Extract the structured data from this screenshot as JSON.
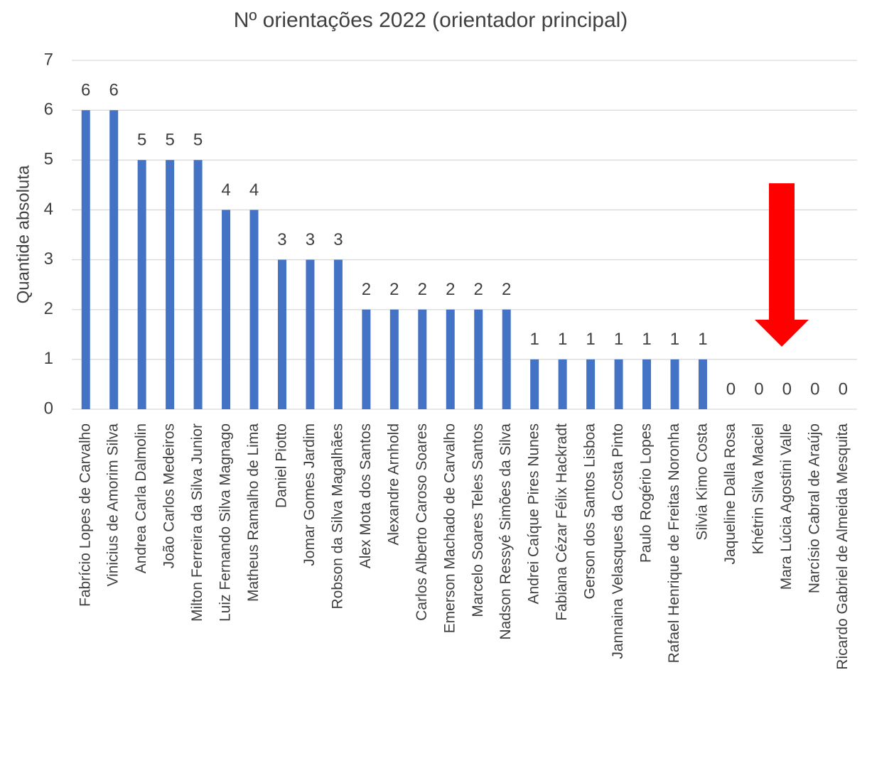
{
  "chart_data": {
    "type": "bar",
    "title": "Nº orientações 2022 (orientador principal)",
    "y_label": "Quantide absoluta",
    "categories": [
      "Fabrício Lopes de Carvalho",
      "Vinicius de Amorim Silva",
      "Andrea Carla Dalmolin",
      "João Carlos Medeiros",
      "Milton Ferreira da Silva Junior",
      "Luiz Fernando Silva Magnago",
      "Matheus Ramalho de Lima",
      "Daniel Piotto",
      "Jomar Gomes Jardim",
      "Robson da Silva Magalhães",
      "Alex Mota dos Santos",
      "Alexandre Arnhold",
      "Carlos Alberto Caroso Soares",
      "Emerson Machado de Carvalho",
      "Marcelo Soares Teles Santos",
      "Nadson Ressyé Simões da Silva",
      "Andrei Caíque Pires Nunes",
      "Fabiana Cézar Félix Hackradt",
      "Gerson dos Santos Lisboa",
      "Jannaina Velasques da Costa Pinto",
      "Paulo Rogério Lopes",
      "Rafael Henrique de Freitas Noronha",
      "Silvia Kimo Costa",
      "Jaqueline Dalla Rosa",
      "Khétrin Silva Maciel",
      "Mara Lúcia Agostini Valle",
      "Narcísio Cabral de Araújo",
      "Ricardo Gabriel de Almeida Mesquita"
    ],
    "values": [
      6,
      6,
      5,
      5,
      5,
      4,
      4,
      3,
      3,
      3,
      2,
      2,
      2,
      2,
      2,
      2,
      1,
      1,
      1,
      1,
      1,
      1,
      1,
      0,
      0,
      0,
      0,
      0
    ],
    "color": "#4472c4",
    "ylim": [
      0,
      7
    ],
    "yticks": [
      0,
      1,
      2,
      3,
      4,
      5,
      6,
      7
    ],
    "grid": true,
    "data_labels": true
  }
}
